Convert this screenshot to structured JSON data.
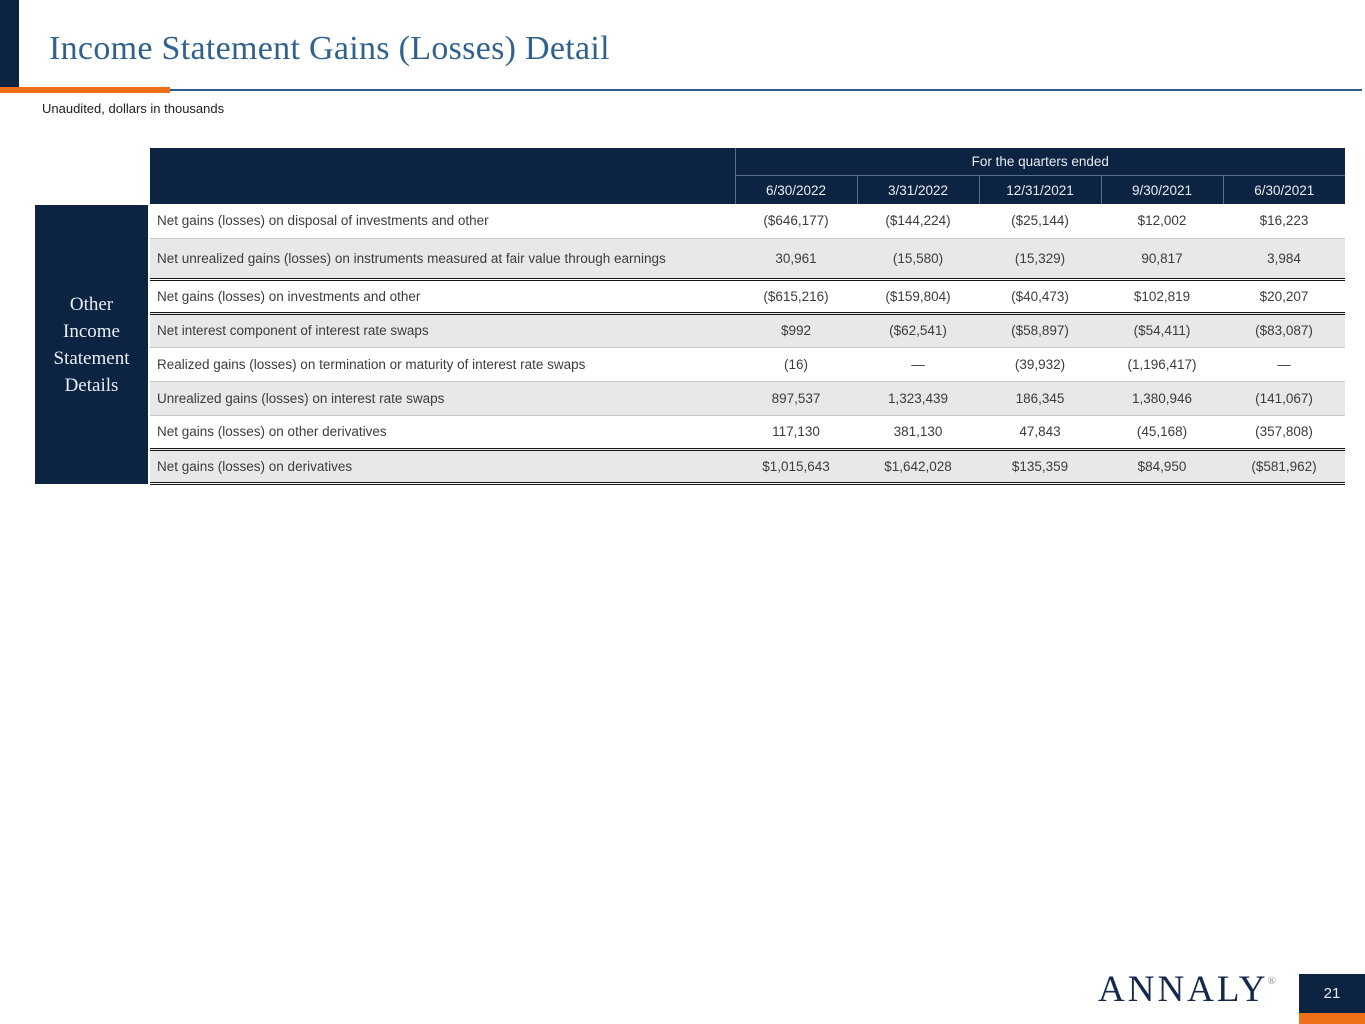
{
  "slide": {
    "title": "Income Statement Gains (Losses) Detail",
    "subtitle": "Unaudited, dollars in thousands",
    "page_number": "21",
    "logo_text": "ANNALY",
    "logo_mark": "®"
  },
  "sidebar": {
    "label": "Other\nIncome\nStatement\nDetails"
  },
  "table": {
    "group_header": "For the quarters ended",
    "columns": [
      "6/30/2022",
      "3/31/2022",
      "12/31/2021",
      "9/30/2021",
      "6/30/2021"
    ],
    "rows": [
      {
        "label": "Net gains (losses) on disposal of investments and other",
        "values": [
          "($646,177)",
          "($144,224)",
          "($25,144)",
          "$12,002",
          "$16,223"
        ],
        "shaded": false,
        "subtotal": false,
        "tall": false
      },
      {
        "label": "Net unrealized gains (losses) on instruments measured at fair value through earnings",
        "values": [
          "30,961",
          "(15,580)",
          "(15,329)",
          "90,817",
          "3,984"
        ],
        "shaded": true,
        "subtotal": false,
        "tall": true
      },
      {
        "label": "Net gains (losses) on investments and other",
        "values": [
          "($615,216)",
          "($159,804)",
          "($40,473)",
          "$102,819",
          "$20,207"
        ],
        "shaded": false,
        "subtotal": true,
        "tall": false
      },
      {
        "label": "Net interest component of interest rate swaps",
        "values": [
          "$992",
          "($62,541)",
          "($58,897)",
          "($54,411)",
          "($83,087)"
        ],
        "shaded": true,
        "subtotal": false,
        "tall": false
      },
      {
        "label": "Realized gains (losses) on termination or maturity of interest rate swaps",
        "values": [
          "(16)",
          "—",
          "(39,932)",
          "(1,196,417)",
          "—"
        ],
        "shaded": false,
        "subtotal": false,
        "tall": false
      },
      {
        "label": "Unrealized gains (losses) on interest rate swaps",
        "values": [
          "897,537",
          "1,323,439",
          "186,345",
          "1,380,946",
          "(141,067)"
        ],
        "shaded": true,
        "subtotal": false,
        "tall": false
      },
      {
        "label": "Net gains (losses) on other derivatives",
        "values": [
          "117,130",
          "381,130",
          "47,843",
          "(45,168)",
          "(357,808)"
        ],
        "shaded": false,
        "subtotal": false,
        "tall": false
      },
      {
        "label": "Net gains (losses) on derivatives",
        "values": [
          "$1,015,643",
          "$1,642,028",
          "$135,359",
          "$84,950",
          "($581,962)"
        ],
        "shaded": true,
        "subtotal": true,
        "tall": false
      }
    ]
  },
  "colors": {
    "navy": "#0c2341",
    "orange": "#f0701a",
    "title_blue": "#31618f",
    "shaded_row": "#e8e8e8"
  }
}
